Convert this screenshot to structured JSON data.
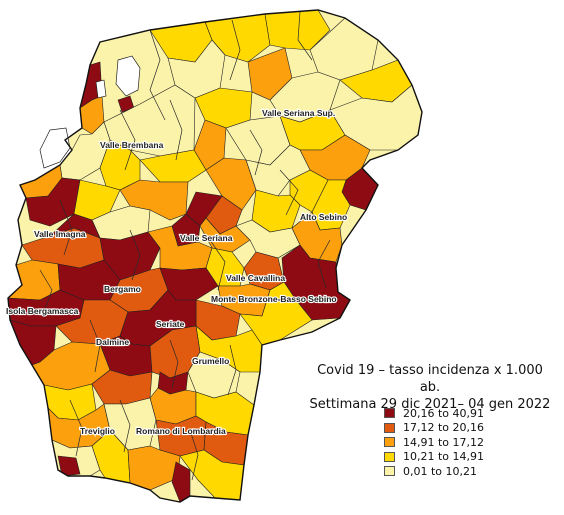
{
  "colors": {
    "c1": "#fbf3a9",
    "c2": "#ffd900",
    "c3": "#fca00d",
    "c4": "#e05a10",
    "c5": "#8e0b14",
    "line": "#222222"
  },
  "legend": {
    "title_line1": "Covid 19 – tasso incidenza x 1.000",
    "title_line2": "ab.",
    "title_line3": "Settimana 29 dic 2021– 04 gen 2022",
    "items": [
      {
        "label": "20,16 to 40,91",
        "color": "#8e0b14"
      },
      {
        "label": "17,12 to 20,16",
        "color": "#e05a10"
      },
      {
        "label": "14,91 to 17,12",
        "color": "#fca00d"
      },
      {
        "label": "10,21 to 14,91",
        "color": "#ffd900"
      },
      {
        "label": "0,01 to 10,21",
        "color": "#fbf3a9"
      }
    ]
  },
  "map_labels": [
    "Valle Seriana Sup.",
    "Valle Brembana",
    "Alto Sebino",
    "Valle Imagna",
    "Valle Seriana",
    "Valle Cavallina",
    "Bergamo",
    "Monte Bronzone-Basso Sebino",
    "Isola Bergamasca",
    "Seriate",
    "Dalmine",
    "Grumello",
    "Treviglio",
    "Romano di Lombardia"
  ]
}
